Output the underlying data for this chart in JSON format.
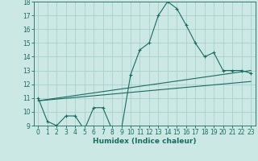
{
  "xlabel": "Humidex (Indice chaleur)",
  "bg_color": "#cce8e4",
  "grid_color": "#aacfcb",
  "line_color": "#1a6b60",
  "xlim": [
    -0.5,
    23.5
  ],
  "ylim": [
    9,
    18
  ],
  "xticks": [
    0,
    1,
    2,
    3,
    4,
    5,
    6,
    7,
    8,
    9,
    10,
    11,
    12,
    13,
    14,
    15,
    16,
    17,
    18,
    19,
    20,
    21,
    22,
    23
  ],
  "yticks": [
    9,
    10,
    11,
    12,
    13,
    14,
    15,
    16,
    17,
    18
  ],
  "line1_x": [
    0,
    1,
    2,
    3,
    4,
    5,
    6,
    7,
    8,
    9,
    10,
    11,
    12,
    13,
    14,
    15,
    16,
    17,
    18,
    19,
    20,
    21,
    22,
    23
  ],
  "line1_y": [
    11.0,
    9.3,
    9.0,
    9.7,
    9.7,
    8.7,
    10.3,
    10.3,
    8.7,
    8.7,
    12.7,
    14.5,
    15.0,
    17.0,
    18.0,
    17.5,
    16.3,
    15.0,
    14.0,
    14.3,
    13.0,
    13.0,
    13.0,
    12.8
  ],
  "line2_x": [
    0,
    23
  ],
  "line2_y": [
    10.8,
    13.0
  ],
  "line3_x": [
    0,
    23
  ],
  "line3_y": [
    10.8,
    12.2
  ],
  "tick_fontsize": 5.5,
  "xlabel_fontsize": 6.5
}
